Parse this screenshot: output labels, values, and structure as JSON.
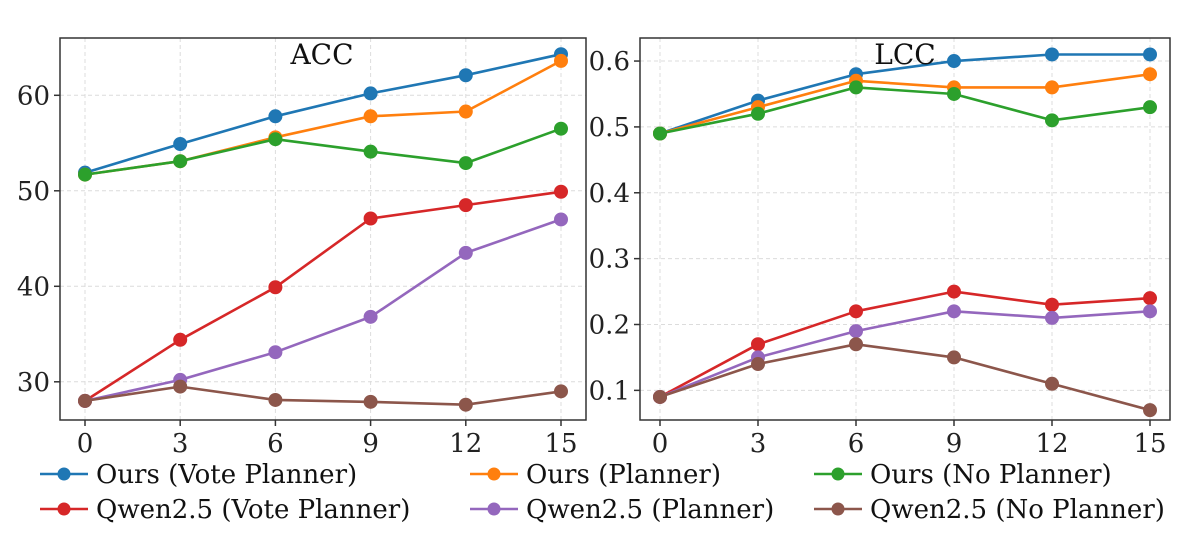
{
  "chart_data": [
    {
      "type": "line",
      "title": "ACC",
      "x": [
        0,
        3,
        6,
        9,
        12,
        15
      ],
      "xticks": [
        "0",
        "3",
        "6",
        "9",
        "12",
        "15"
      ],
      "yticks": [
        "30",
        "40",
        "50",
        "60"
      ],
      "ylim": [
        26,
        66
      ],
      "grid": true,
      "series": [
        {
          "name": "Ours (Vote Planner)",
          "color": "#1f77b4",
          "values": [
            51.9,
            54.9,
            57.8,
            60.2,
            62.1,
            64.3
          ]
        },
        {
          "name": "Ours (Planner)",
          "color": "#ff7f0e",
          "values": [
            51.7,
            53.1,
            55.6,
            57.8,
            58.3,
            63.6
          ]
        },
        {
          "name": "Ours (No Planner)",
          "color": "#2ca02c",
          "values": [
            51.7,
            53.1,
            55.4,
            54.1,
            52.9,
            56.5
          ]
        },
        {
          "name": "Qwen2.5 (Vote Planner)",
          "color": "#d62728",
          "values": [
            28.0,
            34.4,
            39.9,
            47.1,
            48.5,
            49.9
          ]
        },
        {
          "name": "Qwen2.5 (Planner)",
          "color": "#9467bd",
          "values": [
            28.0,
            30.2,
            33.1,
            36.8,
            43.5,
            47.0
          ]
        },
        {
          "name": "Qwen2.5 (No Planner)",
          "color": "#8c564b",
          "values": [
            28.0,
            29.5,
            28.1,
            27.9,
            27.6,
            29.0
          ]
        }
      ]
    },
    {
      "type": "line",
      "title": "LCC",
      "x": [
        0,
        3,
        6,
        9,
        12,
        15
      ],
      "xticks": [
        "0",
        "3",
        "6",
        "9",
        "12",
        "15"
      ],
      "yticks": [
        "0.1",
        "0.2",
        "0.3",
        "0.4",
        "0.5",
        "0.6"
      ],
      "ylim": [
        0.055,
        0.635
      ],
      "grid": true,
      "series": [
        {
          "name": "Ours (Vote Planner)",
          "color": "#1f77b4",
          "values": [
            0.49,
            0.54,
            0.58,
            0.6,
            0.61,
            0.61
          ]
        },
        {
          "name": "Ours (Planner)",
          "color": "#ff7f0e",
          "values": [
            0.49,
            0.53,
            0.57,
            0.56,
            0.56,
            0.58
          ]
        },
        {
          "name": "Ours (No Planner)",
          "color": "#2ca02c",
          "values": [
            0.49,
            0.52,
            0.56,
            0.55,
            0.51,
            0.53
          ]
        },
        {
          "name": "Qwen2.5 (Vote Planner)",
          "color": "#d62728",
          "values": [
            0.09,
            0.17,
            0.22,
            0.25,
            0.23,
            0.24
          ]
        },
        {
          "name": "Qwen2.5 (Planner)",
          "color": "#9467bd",
          "values": [
            0.09,
            0.15,
            0.19,
            0.22,
            0.21,
            0.22
          ]
        },
        {
          "name": "Qwen2.5 (No Planner)",
          "color": "#8c564b",
          "values": [
            0.09,
            0.14,
            0.17,
            0.15,
            0.11,
            0.07
          ]
        }
      ]
    }
  ],
  "legend": {
    "placement": "bottom",
    "items": [
      {
        "label": "Ours (Vote Planner)",
        "color": "#1f77b4"
      },
      {
        "label": "Ours (Planner)",
        "color": "#ff7f0e"
      },
      {
        "label": "Ours (No Planner)",
        "color": "#2ca02c"
      },
      {
        "label": "Qwen2.5 (Vote Planner)",
        "color": "#d62728"
      },
      {
        "label": "Qwen2.5 (Planner)",
        "color": "#9467bd"
      },
      {
        "label": "Qwen2.5 (No Planner)",
        "color": "#8c564b"
      }
    ]
  }
}
